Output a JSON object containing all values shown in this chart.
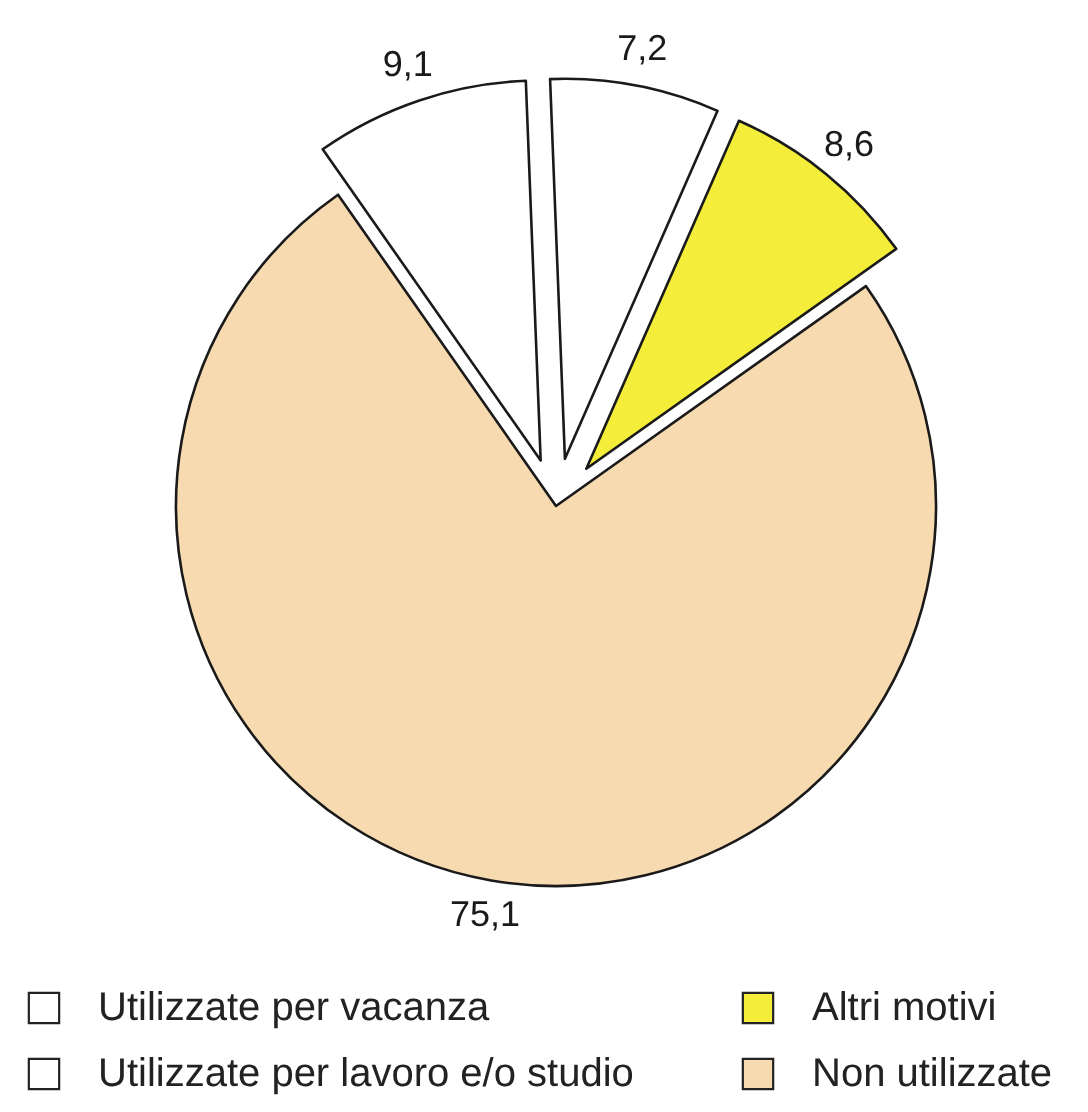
{
  "chart_data": {
    "type": "pie",
    "categories": [
      "Utilizzate per vacanza",
      "Utilizzate per lavoro e/o studio",
      "Altri motivi",
      "Non utilizzate"
    ],
    "values": [
      9.1,
      7.2,
      8.6,
      75.1
    ],
    "value_labels": [
      "9,1",
      "7,2",
      "8,6",
      "75,1"
    ],
    "colors": [
      "#ffffff",
      "#ffffff",
      "#f4ee3a",
      "#f8dab0"
    ],
    "legend": "bottom"
  }
}
